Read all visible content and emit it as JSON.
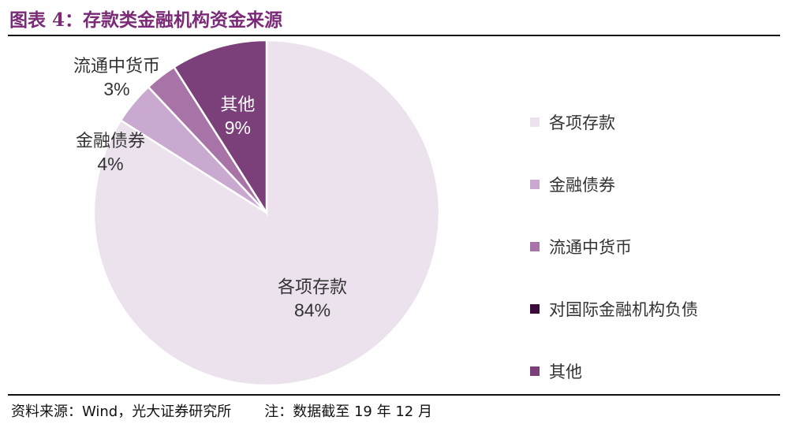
{
  "header": {
    "title": "图表 4：存款类金融机构资金来源"
  },
  "footer": {
    "source": "资料来源：Wind，光大证券研究所",
    "note": "注：数据截至 19 年 12 月"
  },
  "chart_data": {
    "type": "pie",
    "slices": [
      {
        "name": "各项存款",
        "value": 84,
        "label": "84%",
        "color": "#ebe2ee"
      },
      {
        "name": "金融债券",
        "value": 4,
        "label": "4%",
        "color": "#c9a9cf"
      },
      {
        "name": "流通中货币",
        "value": 3,
        "label": "3%",
        "color": "#a874a8"
      },
      {
        "name": "对国际金融机构负债",
        "value": 0,
        "label": "",
        "color": "#3d0a3c"
      },
      {
        "name": "其他",
        "value": 9,
        "label": "9%",
        "color": "#7b3f7a"
      }
    ],
    "legend": {
      "position": "right",
      "entries": [
        "各项存款",
        "金融债券",
        "流通中货币",
        "对国际金融机构负债",
        "其他"
      ]
    }
  }
}
